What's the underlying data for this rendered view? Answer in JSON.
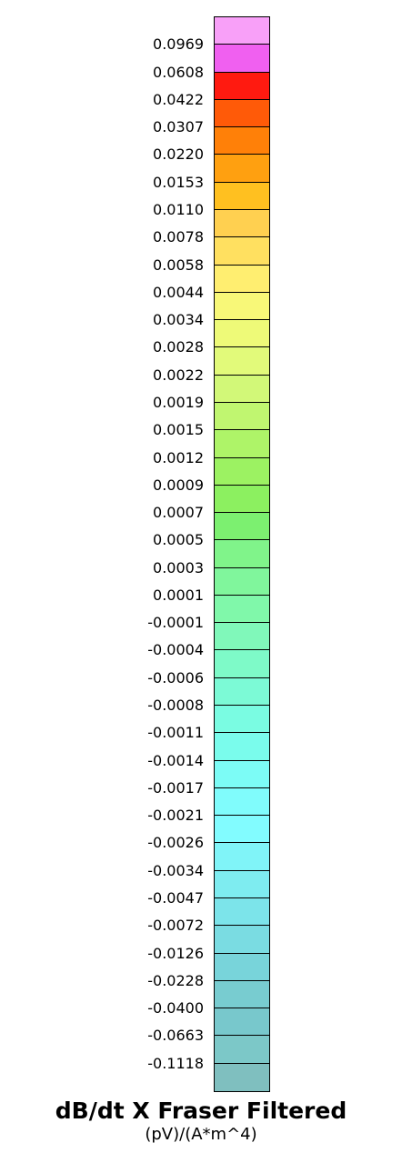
{
  "chart_data": {
    "type": "color-scale-legend",
    "title": "dB/dt X Fraser Filtered",
    "units": "(pV)/(A*m^4)",
    "tick_labels": [
      "0.0969",
      "0.0608",
      "0.0422",
      "0.0307",
      "0.0220",
      "0.0153",
      "0.0110",
      "0.0078",
      "0.0058",
      "0.0044",
      "0.0034",
      "0.0028",
      "0.0022",
      "0.0019",
      "0.0015",
      "0.0012",
      "0.0009",
      "0.0007",
      "0.0005",
      "0.0003",
      "0.0001",
      "-0.0001",
      "-0.0004",
      "-0.0006",
      "-0.0008",
      "-0.0011",
      "-0.0014",
      "-0.0017",
      "-0.0021",
      "-0.0026",
      "-0.0034",
      "-0.0047",
      "-0.0072",
      "-0.0126",
      "-0.0228",
      "-0.0400",
      "-0.0663",
      "-0.1118"
    ],
    "colors_top_to_bottom": [
      "#F8A0F8",
      "#F060F0",
      "#FF1A10",
      "#FF5A08",
      "#FF8008",
      "#FFA010",
      "#FFC020",
      "#FFD050",
      "#FFE060",
      "#FFEE70",
      "#F8F878",
      "#EEFA78",
      "#E2FA7A",
      "#D2F878",
      "#C0F670",
      "#AEF468",
      "#9CF262",
      "#8CF060",
      "#7CF070",
      "#80F48A",
      "#80F69C",
      "#80F8AA",
      "#80F8BA",
      "#7EFAC8",
      "#7CFAD6",
      "#7AFCE2",
      "#7AFCEC",
      "#7CFCF6",
      "#80FCFC",
      "#82FCFF",
      "#80F4F8",
      "#7EECF0",
      "#7CE4EA",
      "#7ADCE2",
      "#78D4DA",
      "#78CCD0",
      "#78C8CC",
      "#7CC8C8",
      "#7FBFBF"
    ]
  }
}
